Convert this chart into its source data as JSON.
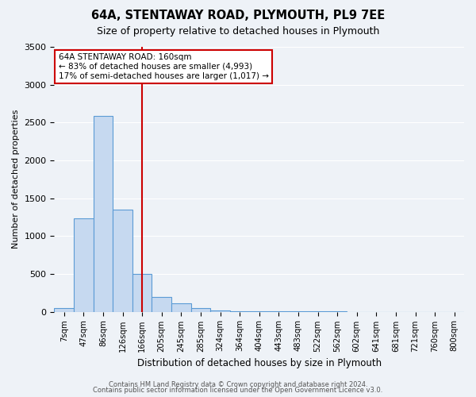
{
  "title": "64A, STENTAWAY ROAD, PLYMOUTH, PL9 7EE",
  "subtitle": "Size of property relative to detached houses in Plymouth",
  "xlabel": "Distribution of detached houses by size in Plymouth",
  "ylabel": "Number of detached properties",
  "bin_labels": [
    "7sqm",
    "47sqm",
    "86sqm",
    "126sqm",
    "166sqm",
    "205sqm",
    "245sqm",
    "285sqm",
    "324sqm",
    "364sqm",
    "404sqm",
    "443sqm",
    "483sqm",
    "522sqm",
    "562sqm",
    "602sqm",
    "641sqm",
    "681sqm",
    "721sqm",
    "760sqm",
    "800sqm"
  ],
  "bar_values": [
    50,
    1230,
    2590,
    1350,
    500,
    200,
    110,
    45,
    20,
    10,
    5,
    3,
    2,
    1,
    1,
    0,
    0,
    0,
    0,
    0,
    0
  ],
  "bar_color": "#c6d9f0",
  "bar_edge_color": "#5b9bd5",
  "vline_x": 4,
  "vline_color": "#cc0000",
  "ylim": [
    0,
    3500
  ],
  "yticks": [
    0,
    500,
    1000,
    1500,
    2000,
    2500,
    3000,
    3500
  ],
  "annotation_title": "64A STENTAWAY ROAD: 160sqm",
  "annotation_line1": "← 83% of detached houses are smaller (4,993)",
  "annotation_line2": "17% of semi-detached houses are larger (1,017) →",
  "annotation_box_color": "#ffffff",
  "annotation_box_edge": "#cc0000",
  "footer1": "Contains HM Land Registry data © Crown copyright and database right 2024.",
  "footer2": "Contains public sector information licensed under the Open Government Licence v3.0.",
  "background_color": "#eef2f7",
  "plot_bg_color": "#eef2f7"
}
